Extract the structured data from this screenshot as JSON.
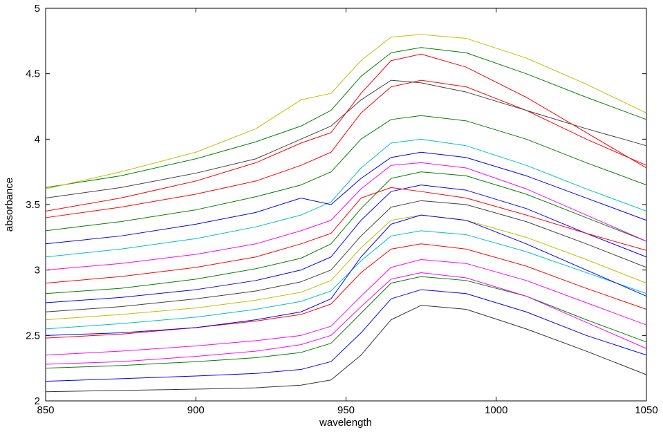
{
  "chart_data": {
    "type": "line",
    "xlabel": "wavelength",
    "ylabel": "absorbance",
    "x": [
      850,
      875,
      900,
      920,
      935,
      945,
      955,
      965,
      975,
      990,
      1010,
      1030,
      1050
    ],
    "xlim": [
      850,
      1050
    ],
    "xticks": [
      850,
      900,
      950,
      1000,
      1050
    ],
    "ylim": [
      2,
      5
    ],
    "yticks": [
      2,
      2.5,
      3,
      3.5,
      4,
      4.5,
      5
    ],
    "grid": false,
    "series": [
      {
        "color": "#333333",
        "values": [
          2.07,
          2.08,
          2.09,
          2.1,
          2.12,
          2.16,
          2.35,
          2.62,
          2.73,
          2.7,
          2.55,
          2.38,
          2.2
        ]
      },
      {
        "color": "#0000ff",
        "values": [
          2.15,
          2.17,
          2.19,
          2.21,
          2.24,
          2.3,
          2.52,
          2.78,
          2.85,
          2.82,
          2.68,
          2.5,
          2.35
        ]
      },
      {
        "color": "#008000",
        "values": [
          2.25,
          2.27,
          2.3,
          2.33,
          2.37,
          2.44,
          2.67,
          2.9,
          2.95,
          2.92,
          2.8,
          2.62,
          2.45
        ]
      },
      {
        "color": "#ff00ff",
        "values": [
          2.35,
          2.38,
          2.42,
          2.46,
          2.5,
          2.57,
          2.8,
          3.02,
          3.08,
          3.05,
          2.92,
          2.75,
          2.58
        ]
      },
      {
        "color": "#ff0000",
        "values": [
          2.48,
          2.51,
          2.56,
          2.61,
          2.66,
          2.74,
          2.98,
          3.16,
          3.2,
          3.16,
          3.03,
          2.86,
          2.7
        ]
      },
      {
        "color": "#00bfbf",
        "values": [
          2.55,
          2.59,
          2.64,
          2.7,
          2.76,
          2.84,
          3.07,
          3.26,
          3.3,
          3.27,
          3.14,
          2.98,
          2.82
        ]
      },
      {
        "color": "#bfbf00",
        "values": [
          2.62,
          2.66,
          2.71,
          2.77,
          2.83,
          2.92,
          3.17,
          3.38,
          3.42,
          3.38,
          3.25,
          3.08,
          2.9
        ]
      },
      {
        "color": "#404040",
        "values": [
          2.68,
          2.72,
          2.78,
          2.84,
          2.91,
          3.0,
          3.26,
          3.48,
          3.53,
          3.5,
          3.37,
          3.2,
          3.02
        ]
      },
      {
        "color": "#0000ff",
        "values": [
          2.75,
          2.79,
          2.85,
          2.92,
          3.0,
          3.1,
          3.38,
          3.6,
          3.65,
          3.61,
          3.47,
          3.28,
          3.1
        ]
      },
      {
        "color": "#008000",
        "values": [
          2.82,
          2.86,
          2.93,
          3.01,
          3.09,
          3.2,
          3.47,
          3.7,
          3.75,
          3.72,
          3.58,
          3.4,
          3.22
        ]
      },
      {
        "color": "#ff0000",
        "values": [
          2.9,
          2.95,
          3.02,
          3.1,
          3.2,
          3.28,
          3.55,
          3.63,
          3.6,
          3.55,
          3.42,
          3.28,
          3.15
        ]
      },
      {
        "color": "#ff00ff",
        "values": [
          3.0,
          3.05,
          3.12,
          3.2,
          3.3,
          3.38,
          3.62,
          3.8,
          3.82,
          3.78,
          3.62,
          3.42,
          3.22
        ]
      },
      {
        "color": "#00bfbf",
        "values": [
          3.1,
          3.16,
          3.24,
          3.33,
          3.42,
          3.52,
          3.78,
          3.97,
          4.0,
          3.95,
          3.8,
          3.62,
          3.45
        ]
      },
      {
        "color": "#0000ff",
        "values": [
          3.2,
          3.26,
          3.35,
          3.44,
          3.55,
          3.5,
          3.7,
          3.86,
          3.9,
          3.86,
          3.72,
          3.55,
          3.38
        ]
      },
      {
        "color": "#008000",
        "values": [
          3.3,
          3.37,
          3.46,
          3.56,
          3.65,
          3.75,
          4.0,
          4.15,
          4.18,
          4.14,
          4.0,
          3.82,
          3.65
        ]
      },
      {
        "color": "#ff0000",
        "values": [
          3.4,
          3.48,
          3.58,
          3.68,
          3.8,
          3.9,
          4.2,
          4.4,
          4.45,
          4.4,
          4.22,
          4.0,
          3.8
        ]
      },
      {
        "color": "#404040",
        "values": [
          3.55,
          3.63,
          3.74,
          3.85,
          4.0,
          4.1,
          4.3,
          4.45,
          4.43,
          4.36,
          4.22,
          4.08,
          3.95
        ]
      },
      {
        "color": "#008000",
        "values": [
          3.63,
          3.72,
          3.85,
          3.98,
          4.1,
          4.22,
          4.48,
          4.66,
          4.7,
          4.66,
          4.5,
          4.32,
          4.15
        ]
      },
      {
        "color": "#bfbf00",
        "values": [
          3.62,
          3.75,
          3.9,
          4.08,
          4.3,
          4.35,
          4.6,
          4.78,
          4.8,
          4.77,
          4.62,
          4.42,
          4.2
        ]
      },
      {
        "color": "#ff0000",
        "values": [
          3.45,
          3.55,
          3.68,
          3.82,
          3.97,
          4.05,
          4.35,
          4.6,
          4.65,
          4.55,
          4.32,
          4.05,
          3.78
        ]
      },
      {
        "color": "#0000ff",
        "values": [
          2.5,
          2.52,
          2.56,
          2.62,
          2.68,
          2.78,
          3.1,
          3.35,
          3.42,
          3.38,
          3.2,
          3.0,
          2.8
        ]
      },
      {
        "color": "#ff00ff",
        "values": [
          2.28,
          2.3,
          2.34,
          2.38,
          2.43,
          2.5,
          2.72,
          2.93,
          2.98,
          2.94,
          2.8,
          2.6,
          2.4
        ]
      }
    ]
  }
}
